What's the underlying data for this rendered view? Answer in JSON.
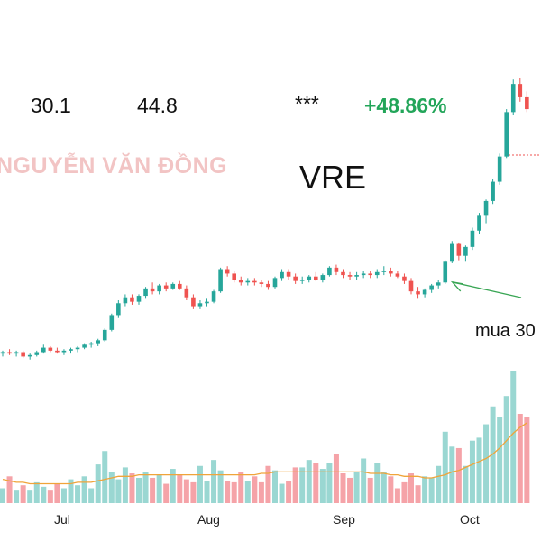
{
  "header": {
    "value_1": "30.1",
    "value_2": "44.8",
    "stars": "***",
    "change": "+48.86%"
  },
  "watermark": "NGUYỄN VĂN ĐỒNG",
  "ticker": "VRE",
  "annotation": {
    "text": "mua 30"
  },
  "colors": {
    "up": "#26a69a",
    "down": "#ef5350",
    "volume_up": "#9ad7d2",
    "volume_down": "#f5a3a8",
    "ma_line": "#f0a43a",
    "change_text": "#22a559",
    "arrow": "#3aa655",
    "watermark": "#f2c4c4"
  },
  "chart_data": {
    "type": "candlestick",
    "title": "VRE",
    "x_labels": [
      "Jul",
      "Aug",
      "Sep",
      "Oct"
    ],
    "ohlc_estimated": [
      [
        18.6,
        18.8,
        18.4,
        18.7
      ],
      [
        18.7,
        18.9,
        18.5,
        18.6
      ],
      [
        18.6,
        18.8,
        18.4,
        18.7
      ],
      [
        18.7,
        18.8,
        18.3,
        18.4
      ],
      [
        18.4,
        18.6,
        18.2,
        18.5
      ],
      [
        18.5,
        18.8,
        18.4,
        18.7
      ],
      [
        18.7,
        19.2,
        18.6,
        19.0
      ],
      [
        19.0,
        19.1,
        18.7,
        18.8
      ],
      [
        18.8,
        19.0,
        18.6,
        18.7
      ],
      [
        18.7,
        18.9,
        18.5,
        18.8
      ],
      [
        18.8,
        19.0,
        18.6,
        18.9
      ],
      [
        18.9,
        19.1,
        18.7,
        19.0
      ],
      [
        19.0,
        19.3,
        18.9,
        19.2
      ],
      [
        19.2,
        19.4,
        19.0,
        19.3
      ],
      [
        19.3,
        19.6,
        19.1,
        19.5
      ],
      [
        19.5,
        20.3,
        19.4,
        20.2
      ],
      [
        20.2,
        21.3,
        20.1,
        21.2
      ],
      [
        21.2,
        22.2,
        21.0,
        22.0
      ],
      [
        22.0,
        22.6,
        21.8,
        22.4
      ],
      [
        22.4,
        22.6,
        21.9,
        22.1
      ],
      [
        22.1,
        22.6,
        21.9,
        22.5
      ],
      [
        22.5,
        23.1,
        22.3,
        23.0
      ],
      [
        23.0,
        23.4,
        22.6,
        22.8
      ],
      [
        22.8,
        23.3,
        22.6,
        23.2
      ],
      [
        23.2,
        23.4,
        22.8,
        23.0
      ],
      [
        23.0,
        23.4,
        22.9,
        23.3
      ],
      [
        23.3,
        23.5,
        22.9,
        23.0
      ],
      [
        23.0,
        23.2,
        22.2,
        22.4
      ],
      [
        22.4,
        22.6,
        21.6,
        21.8
      ],
      [
        21.8,
        22.2,
        21.6,
        22.0
      ],
      [
        22.0,
        22.3,
        21.8,
        22.1
      ],
      [
        22.1,
        22.9,
        22.0,
        22.8
      ],
      [
        22.8,
        24.4,
        22.7,
        24.3
      ],
      [
        24.3,
        24.5,
        23.8,
        24.0
      ],
      [
        24.0,
        24.2,
        23.4,
        23.6
      ],
      [
        23.6,
        23.8,
        23.2,
        23.4
      ],
      [
        23.4,
        23.7,
        23.2,
        23.5
      ],
      [
        23.5,
        23.7,
        23.2,
        23.4
      ],
      [
        23.4,
        23.6,
        23.1,
        23.3
      ],
      [
        23.3,
        23.5,
        22.9,
        23.1
      ],
      [
        23.1,
        23.8,
        23.0,
        23.7
      ],
      [
        23.7,
        24.3,
        23.5,
        24.1
      ],
      [
        24.1,
        24.3,
        23.6,
        23.8
      ],
      [
        23.8,
        24.0,
        23.3,
        23.5
      ],
      [
        23.5,
        23.8,
        23.3,
        23.6
      ],
      [
        23.6,
        23.9,
        23.4,
        23.8
      ],
      [
        23.8,
        24.1,
        23.5,
        23.6
      ],
      [
        23.6,
        24.0,
        23.4,
        23.9
      ],
      [
        23.9,
        24.5,
        23.8,
        24.4
      ],
      [
        24.4,
        24.6,
        23.9,
        24.1
      ],
      [
        24.1,
        24.3,
        23.7,
        23.9
      ],
      [
        23.9,
        24.1,
        23.6,
        23.8
      ],
      [
        23.8,
        24.1,
        23.6,
        23.9
      ],
      [
        23.9,
        24.2,
        23.7,
        24.0
      ],
      [
        24.0,
        24.2,
        23.7,
        23.9
      ],
      [
        23.9,
        24.3,
        23.7,
        24.1
      ],
      [
        24.1,
        24.5,
        23.9,
        24.2
      ],
      [
        24.2,
        24.4,
        23.8,
        24.0
      ],
      [
        24.0,
        24.2,
        23.7,
        23.8
      ],
      [
        23.8,
        24.0,
        23.3,
        23.5
      ],
      [
        23.5,
        23.7,
        22.6,
        22.8
      ],
      [
        22.8,
        23.1,
        22.3,
        22.6
      ],
      [
        22.6,
        23.0,
        22.4,
        22.9
      ],
      [
        22.9,
        23.3,
        22.7,
        23.2
      ],
      [
        23.2,
        23.6,
        23.0,
        23.4
      ],
      [
        23.4,
        24.9,
        23.3,
        24.8
      ],
      [
        24.8,
        26.2,
        24.7,
        26.0
      ],
      [
        26.0,
        26.1,
        24.9,
        25.2
      ],
      [
        25.2,
        25.9,
        24.8,
        25.8
      ],
      [
        25.8,
        27.1,
        25.6,
        26.9
      ],
      [
        26.9,
        28.1,
        26.7,
        27.9
      ],
      [
        27.9,
        29.0,
        27.4,
        28.9
      ],
      [
        28.9,
        30.4,
        28.7,
        30.2
      ],
      [
        30.2,
        32.1,
        30.0,
        31.9
      ],
      [
        31.9,
        35.1,
        31.8,
        34.9
      ],
      [
        34.9,
        37.1,
        34.7,
        36.8
      ],
      [
        36.8,
        37.2,
        35.6,
        35.9
      ],
      [
        35.9,
        36.3,
        34.9,
        35.1
      ]
    ],
    "volume_estimated": [
      0.1,
      0.18,
      0.09,
      0.12,
      0.09,
      0.14,
      0.11,
      0.09,
      0.13,
      0.1,
      0.16,
      0.12,
      0.18,
      0.1,
      0.26,
      0.35,
      0.21,
      0.16,
      0.24,
      0.2,
      0.17,
      0.21,
      0.17,
      0.19,
      0.13,
      0.23,
      0.19,
      0.16,
      0.14,
      0.25,
      0.15,
      0.29,
      0.22,
      0.15,
      0.14,
      0.21,
      0.15,
      0.18,
      0.14,
      0.25,
      0.22,
      0.13,
      0.15,
      0.24,
      0.24,
      0.29,
      0.27,
      0.23,
      0.27,
      0.33,
      0.2,
      0.17,
      0.21,
      0.3,
      0.17,
      0.27,
      0.21,
      0.18,
      0.1,
      0.14,
      0.2,
      0.12,
      0.18,
      0.17,
      0.25,
      0.48,
      0.38,
      0.37,
      0.25,
      0.42,
      0.44,
      0.53,
      0.65,
      0.58,
      0.72,
      0.89,
      0.6,
      0.58
    ],
    "volume_ma_estimated": [
      0.16,
      0.15,
      0.14,
      0.14,
      0.13,
      0.13,
      0.13,
      0.13,
      0.13,
      0.13,
      0.13,
      0.14,
      0.14,
      0.14,
      0.15,
      0.16,
      0.17,
      0.18,
      0.18,
      0.18,
      0.19,
      0.19,
      0.19,
      0.19,
      0.19,
      0.19,
      0.19,
      0.19,
      0.19,
      0.19,
      0.19,
      0.19,
      0.19,
      0.19,
      0.19,
      0.19,
      0.19,
      0.19,
      0.2,
      0.2,
      0.21,
      0.21,
      0.21,
      0.21,
      0.21,
      0.21,
      0.21,
      0.21,
      0.21,
      0.21,
      0.21,
      0.21,
      0.21,
      0.21,
      0.2,
      0.2,
      0.2,
      0.19,
      0.19,
      0.18,
      0.18,
      0.18,
      0.17,
      0.17,
      0.18,
      0.19,
      0.21,
      0.22,
      0.24,
      0.26,
      0.28,
      0.3,
      0.33,
      0.37,
      0.42,
      0.47,
      0.51,
      0.54
    ],
    "reference_level": 32.0,
    "annotation": {
      "text": "mua 30",
      "points_to_index": 65
    }
  }
}
